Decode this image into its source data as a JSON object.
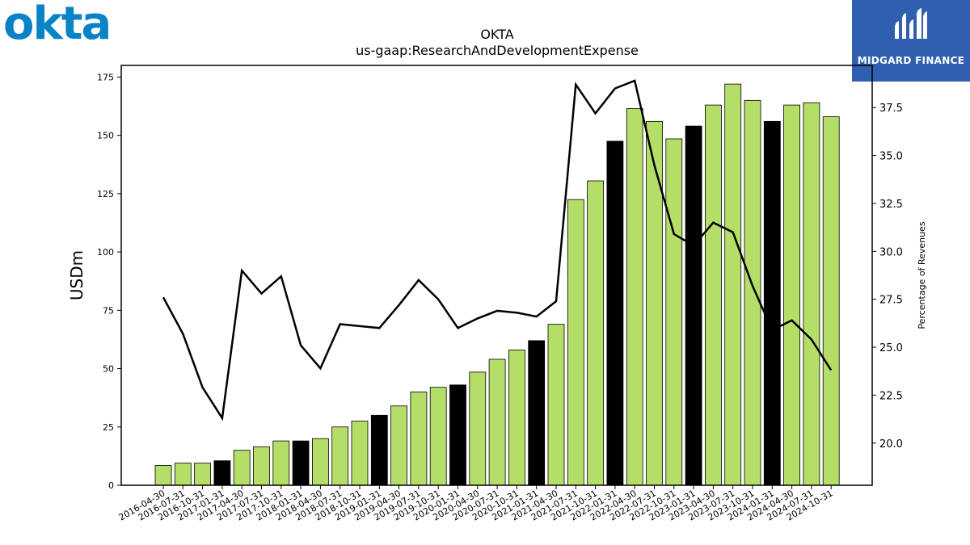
{
  "logos": {
    "company": "okta",
    "publisher": "MIDGARD FINANCE",
    "publisher_icon": "midgard-m-icon"
  },
  "chart_data": {
    "type": "bar",
    "title": "OKTA",
    "subtitle": "us-gaap:ResearchAndDevelopmentExpense",
    "ylabel": "USDm",
    "y2label": "Percentage of Revenues",
    "ylim": [
      0,
      180
    ],
    "y2lim": [
      17.8,
      39.7
    ],
    "yticks": [
      0,
      25,
      50,
      75,
      100,
      125,
      150,
      175
    ],
    "y2ticks": [
      20.0,
      22.5,
      25.0,
      27.5,
      30.0,
      32.5,
      35.0,
      37.5
    ],
    "categories": [
      "2016-04-30",
      "2016-07-31",
      "2016-10-31",
      "2017-01-31",
      "2017-04-30",
      "2017-07-31",
      "2017-10-31",
      "2018-01-31",
      "2018-04-30",
      "2018-07-31",
      "2018-10-31",
      "2019-01-31",
      "2019-04-30",
      "2019-07-31",
      "2019-10-31",
      "2020-01-31",
      "2020-04-30",
      "2020-07-31",
      "2020-10-31",
      "2021-01-31",
      "2021-04-30",
      "2021-07-31",
      "2021-10-31",
      "2022-01-31",
      "2022-04-30",
      "2022-07-31",
      "2022-10-31",
      "2023-01-31",
      "2023-04-30",
      "2023-07-31",
      "2023-10-31",
      "2024-01-31",
      "2024-04-30",
      "2024-07-31",
      "2024-10-31"
    ],
    "series": [
      {
        "type": "bar",
        "axis": "left",
        "values": [
          8.5,
          9.5,
          9.5,
          10.5,
          15,
          16.5,
          19,
          19,
          20,
          25,
          27.5,
          30,
          34,
          40,
          42,
          43,
          48.5,
          54,
          58,
          62,
          69,
          122.5,
          130.5,
          147.5,
          161.5,
          156,
          148.5,
          154,
          163,
          172,
          165,
          156,
          163,
          164,
          158
        ],
        "colors": [
          "#b5de69",
          "#b5de69",
          "#b5de69",
          "#000000",
          "#b5de69",
          "#b5de69",
          "#b5de69",
          "#000000",
          "#b5de69",
          "#b5de69",
          "#b5de69",
          "#000000",
          "#b5de69",
          "#b5de69",
          "#b5de69",
          "#000000",
          "#b5de69",
          "#b5de69",
          "#b5de69",
          "#000000",
          "#b5de69",
          "#b5de69",
          "#b5de69",
          "#000000",
          "#b5de69",
          "#b5de69",
          "#b5de69",
          "#000000",
          "#b5de69",
          "#b5de69",
          "#b5de69",
          "#000000",
          "#b5de69",
          "#b5de69",
          "#b5de69"
        ]
      },
      {
        "type": "line",
        "axis": "right",
        "color": "#000000",
        "values": [
          27.6,
          25.7,
          22.9,
          21.3,
          29.0,
          27.8,
          28.7,
          25.1,
          23.9,
          26.2,
          26.1,
          26.0,
          27.2,
          28.5,
          27.5,
          26.0,
          26.5,
          26.9,
          26.8,
          26.6,
          27.4,
          38.7,
          37.2,
          38.5,
          38.9,
          34.5,
          30.9,
          30.3,
          31.5,
          31.0,
          28.2,
          25.9,
          26.4,
          25.4,
          23.8
        ]
      }
    ],
    "legend": "none",
    "grid": false
  }
}
